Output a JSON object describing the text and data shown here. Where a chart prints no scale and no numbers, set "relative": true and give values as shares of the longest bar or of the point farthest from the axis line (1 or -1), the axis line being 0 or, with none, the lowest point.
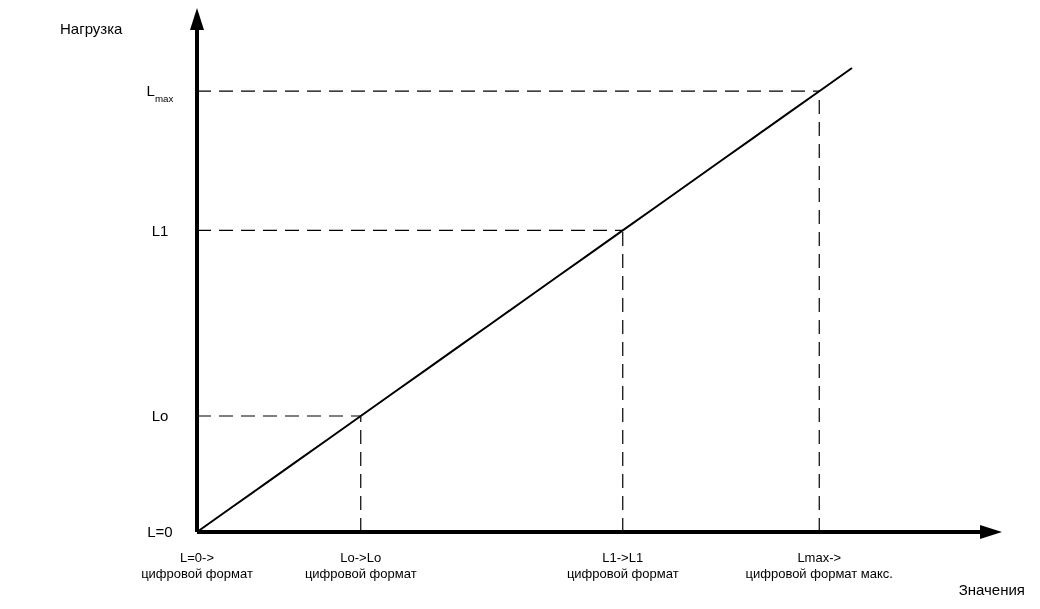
{
  "chart_data": {
    "type": "line",
    "relative": true,
    "xlabel": "Значения",
    "ylabel": "Нагрузка",
    "categories": [
      "L=0-> цифровой формат",
      null,
      null,
      null,
      null,
      "Lo->Lo цифровой формат",
      null,
      null,
      null,
      null,
      null,
      null,
      null,
      "L1->L1 цифровой формат",
      null,
      null,
      null,
      null,
      null,
      "Lmax-> цифровой формат макс.",
      null
    ],
    "series": [
      {
        "color": "#000000",
        "values": [
          0,
          0.05,
          0.1,
          0.15,
          0.2,
          0.25,
          0.3,
          0.35,
          0.4,
          0.45,
          0.5,
          0.55,
          0.6,
          0.65,
          0.7,
          0.75,
          0.8,
          0.85,
          0.9,
          0.95,
          1
        ]
      }
    ],
    "ref_lines": [
      {
        "axis": "y",
        "value": 0.25,
        "label": "Lo",
        "line_style": "dashed"
      },
      {
        "axis": "y",
        "value": 0.65,
        "label": "L1",
        "line_style": "dashed"
      },
      {
        "axis": "y",
        "value": 0.95,
        "label": "L$_{max}$",
        "line_style": "dashed"
      },
      {
        "axis": "x",
        "value": "Lo->Lo цифровой формат",
        "line_style": "dashed"
      },
      {
        "axis": "x",
        "value": "L1->L1 цифровой формат",
        "line_style": "dashed"
      },
      {
        "axis": "x",
        "value": "Lmax-> цифровой формат макс.",
        "line_style": "dashed"
      }
    ],
    "annotations": [
      "L=0"
    ],
    "marker": "none",
    "line_style": "solid"
  }
}
